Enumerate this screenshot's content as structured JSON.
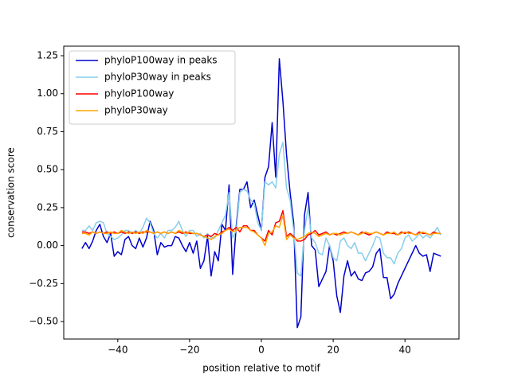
{
  "chart_data": {
    "type": "line",
    "xlabel": "position relative to motif",
    "ylabel": "conservation score",
    "x": [
      -50,
      -49,
      -48,
      -47,
      -46,
      -45,
      -44,
      -43,
      -42,
      -41,
      -40,
      -39,
      -38,
      -37,
      -36,
      -35,
      -34,
      -33,
      -32,
      -31,
      -30,
      -29,
      -28,
      -27,
      -26,
      -25,
      -24,
      -23,
      -22,
      -21,
      -20,
      -19,
      -18,
      -17,
      -16,
      -15,
      -14,
      -13,
      -12,
      -11,
      -10,
      -9,
      -8,
      -7,
      -6,
      -5,
      -4,
      -3,
      -2,
      -1,
      0,
      1,
      2,
      3,
      4,
      5,
      6,
      7,
      8,
      9,
      10,
      11,
      12,
      13,
      14,
      15,
      16,
      17,
      18,
      19,
      20,
      21,
      22,
      23,
      24,
      25,
      26,
      27,
      28,
      29,
      30,
      31,
      32,
      33,
      34,
      35,
      36,
      37,
      38,
      39,
      40,
      41,
      42,
      43,
      44,
      45,
      46,
      47,
      48,
      49,
      50
    ],
    "series": [
      {
        "name": "phyloP100way in peaks",
        "color": "#0000cd",
        "values": [
          -0.02,
          0.02,
          -0.02,
          0.03,
          0.1,
          0.14,
          0.06,
          0.02,
          0.08,
          -0.07,
          -0.04,
          -0.06,
          0.04,
          0.06,
          0.0,
          -0.02,
          0.05,
          -0.01,
          0.05,
          0.16,
          0.1,
          -0.06,
          0.02,
          -0.01,
          0.0,
          0.0,
          0.06,
          0.05,
          0.0,
          -0.04,
          0.02,
          -0.05,
          0.03,
          -0.15,
          -0.1,
          0.06,
          -0.2,
          -0.04,
          -0.1,
          0.14,
          0.1,
          0.4,
          -0.19,
          0.13,
          0.37,
          0.37,
          0.42,
          0.25,
          0.3,
          0.2,
          0.1,
          0.45,
          0.52,
          0.81,
          0.45,
          1.23,
          0.95,
          0.6,
          0.35,
          0.15,
          -0.54,
          -0.47,
          0.2,
          0.35,
          0.0,
          -0.03,
          -0.27,
          -0.22,
          -0.17,
          0.0,
          -0.1,
          -0.33,
          -0.44,
          -0.2,
          -0.1,
          -0.2,
          -0.17,
          -0.22,
          -0.23,
          -0.18,
          -0.17,
          -0.14,
          -0.05,
          -0.02,
          -0.21,
          -0.21,
          -0.35,
          -0.32,
          -0.25,
          -0.2,
          -0.15,
          -0.1,
          -0.05,
          0.0,
          -0.05,
          -0.07,
          -0.06,
          -0.17,
          -0.05,
          -0.06,
          -0.07
        ]
      },
      {
        "name": "phyloP30way in peaks",
        "color": "#87ceeb",
        "values": [
          0.1,
          0.1,
          0.13,
          0.1,
          0.15,
          0.16,
          0.15,
          0.08,
          0.06,
          0.04,
          0.05,
          0.07,
          0.1,
          0.1,
          0.08,
          0.1,
          0.08,
          0.12,
          0.18,
          0.15,
          0.08,
          0.05,
          0.08,
          0.05,
          0.1,
          0.1,
          0.12,
          0.16,
          0.1,
          0.06,
          0.1,
          0.1,
          0.06,
          0.08,
          0.05,
          0.08,
          0.05,
          0.05,
          0.1,
          0.15,
          0.2,
          0.35,
          0.05,
          0.1,
          0.35,
          0.37,
          0.36,
          0.3,
          0.28,
          0.15,
          0.1,
          0.42,
          0.4,
          0.42,
          0.38,
          0.6,
          0.68,
          0.38,
          0.3,
          0.1,
          -0.18,
          -0.2,
          0.1,
          0.25,
          0.05,
          0.02,
          -0.05,
          -0.06,
          0.05,
          0.0,
          -0.08,
          -0.1,
          0.03,
          0.05,
          0.0,
          -0.02,
          0.02,
          -0.05,
          -0.05,
          -0.1,
          -0.05,
          0.0,
          0.06,
          0.05,
          -0.05,
          -0.08,
          -0.08,
          -0.12,
          -0.05,
          -0.02,
          0.05,
          0.07,
          0.03,
          0.05,
          0.08,
          0.05,
          0.07,
          0.05,
          0.08,
          0.12,
          0.07
        ]
      },
      {
        "name": "phyloP100way",
        "color": "#ff0000",
        "values": [
          0.09,
          0.09,
          0.08,
          0.09,
          0.08,
          0.09,
          0.08,
          0.09,
          0.08,
          0.09,
          0.08,
          0.09,
          0.08,
          0.09,
          0.08,
          0.09,
          0.08,
          0.09,
          0.09,
          0.09,
          0.08,
          0.09,
          0.08,
          0.09,
          0.08,
          0.09,
          0.08,
          0.09,
          0.08,
          0.09,
          0.08,
          0.08,
          0.08,
          0.07,
          0.06,
          0.07,
          0.06,
          0.08,
          0.07,
          0.09,
          0.1,
          0.12,
          0.1,
          0.12,
          0.09,
          0.13,
          0.13,
          0.1,
          0.1,
          0.07,
          0.05,
          0.03,
          0.1,
          0.07,
          0.15,
          0.16,
          0.23,
          0.06,
          0.08,
          0.06,
          0.03,
          0.03,
          0.04,
          0.07,
          0.08,
          0.1,
          0.07,
          0.08,
          0.09,
          0.07,
          0.08,
          0.07,
          0.08,
          0.09,
          0.08,
          0.09,
          0.08,
          0.07,
          0.09,
          0.08,
          0.07,
          0.08,
          0.09,
          0.08,
          0.07,
          0.09,
          0.08,
          0.08,
          0.07,
          0.09,
          0.08,
          0.09,
          0.08,
          0.07,
          0.09,
          0.08,
          0.08,
          0.07,
          0.09,
          0.08,
          0.08
        ]
      },
      {
        "name": "phyloP30way",
        "color": "#ffa500",
        "values": [
          0.08,
          0.08,
          0.07,
          0.09,
          0.08,
          0.09,
          0.08,
          0.08,
          0.09,
          0.08,
          0.08,
          0.1,
          0.09,
          0.08,
          0.09,
          0.08,
          0.09,
          0.08,
          0.1,
          0.09,
          0.08,
          0.09,
          0.08,
          0.09,
          0.08,
          0.09,
          0.08,
          0.1,
          0.09,
          0.08,
          0.09,
          0.08,
          0.08,
          0.07,
          0.06,
          0.05,
          0.04,
          0.06,
          0.07,
          0.08,
          0.1,
          0.11,
          0.09,
          0.1,
          0.12,
          0.12,
          0.12,
          0.1,
          0.09,
          0.07,
          0.05,
          0.0,
          0.08,
          0.09,
          0.13,
          0.12,
          0.2,
          0.04,
          0.07,
          0.05,
          0.04,
          0.05,
          0.06,
          0.08,
          0.09,
          0.08,
          0.06,
          0.07,
          0.08,
          0.07,
          0.08,
          0.08,
          0.07,
          0.08,
          0.08,
          0.09,
          0.08,
          0.07,
          0.08,
          0.09,
          0.08,
          0.08,
          0.09,
          0.08,
          0.07,
          0.08,
          0.08,
          0.09,
          0.07,
          0.08,
          0.09,
          0.08,
          0.08,
          0.07,
          0.08,
          0.09,
          0.08,
          0.07,
          0.08,
          0.08,
          0.08
        ]
      }
    ],
    "xlim": [
      -55.05,
      55.05
    ],
    "xticks": [
      {
        "value": -40,
        "label": "−40"
      },
      {
        "value": -20,
        "label": "−20"
      },
      0,
      20,
      40
    ],
    "ylim": [
      -0.615,
      1.313
    ],
    "yticks": [
      {
        "value": -0.5,
        "label": "−0.50"
      },
      {
        "value": -0.25,
        "label": "−0.25"
      },
      {
        "value": 0,
        "label": "0.00"
      },
      0.25,
      {
        "value": 0.5,
        "label": "0.50"
      },
      0.75,
      {
        "value": 1,
        "label": "1.00"
      },
      1.25
    ],
    "legend": "upper left"
  }
}
